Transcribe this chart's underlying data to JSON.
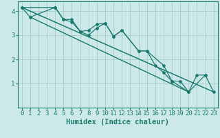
{
  "xlabel": "Humidex (Indice chaleur)",
  "bg_color": "#cce8e8",
  "line_color": "#1a7a6e",
  "grid_color": "#aad0cc",
  "xlim": [
    -0.5,
    23.5
  ],
  "ylim": [
    0,
    4.4
  ],
  "yticks": [
    1,
    2,
    3,
    4
  ],
  "xticks": [
    0,
    1,
    2,
    3,
    4,
    5,
    6,
    7,
    8,
    9,
    10,
    11,
    12,
    13,
    14,
    15,
    16,
    17,
    18,
    19,
    20,
    21,
    22,
    23
  ],
  "line1_x": [
    0,
    1,
    4,
    5,
    6,
    7,
    8,
    9,
    10,
    11,
    12,
    14,
    15,
    17,
    18,
    20,
    22
  ],
  "line1_y": [
    4.15,
    3.75,
    4.15,
    3.65,
    3.65,
    3.15,
    3.2,
    3.45,
    3.5,
    2.95,
    3.2,
    2.35,
    2.35,
    1.75,
    1.1,
    0.65,
    1.35
  ],
  "line2_x": [
    0,
    4,
    5,
    6,
    7,
    8,
    9,
    10,
    11,
    12,
    14,
    15,
    16,
    17,
    18,
    19,
    20,
    21,
    22,
    23
  ],
  "line2_y": [
    4.15,
    4.15,
    3.65,
    3.55,
    3.15,
    3.0,
    3.3,
    3.5,
    2.95,
    3.2,
    2.35,
    2.35,
    1.75,
    1.45,
    1.1,
    1.1,
    0.65,
    1.35,
    1.35,
    0.65
  ],
  "line3_x": [
    0,
    23
  ],
  "line3_y": [
    4.15,
    0.65
  ],
  "line4_x": [
    0,
    23
  ],
  "line4_y": [
    4.15,
    0.65
  ],
  "font_family": "monospace",
  "tick_fontsize": 6.5,
  "label_fontsize": 7.5
}
